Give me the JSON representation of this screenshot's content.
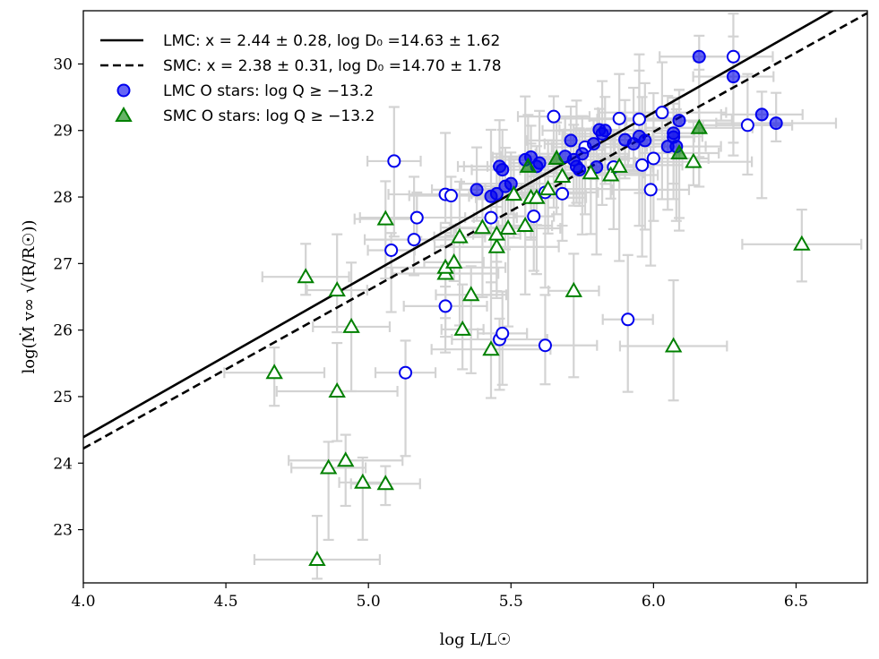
{
  "chart_data": {
    "type": "scatter",
    "xlabel": "log L/L☉",
    "ylabel": "log(Ṁ v∞ √(R/R☉))",
    "xlim": [
      4.0,
      6.75
    ],
    "ylim": [
      22.2,
      30.8
    ],
    "xticks": [
      4.0,
      4.5,
      5.0,
      5.5,
      6.0,
      6.5
    ],
    "yticks": [
      23,
      24,
      25,
      26,
      27,
      28,
      29,
      30
    ],
    "xtick_labels": [
      "4.0",
      "4.5",
      "5.0",
      "5.5",
      "6.0",
      "6.5"
    ],
    "ytick_labels": [
      "23",
      "24",
      "25",
      "26",
      "27",
      "28",
      "29",
      "30"
    ],
    "legend": {
      "position": "top-left",
      "entries": [
        "LMC: x = 2.44 ± 0.28, log D₀ =14.63 ± 1.62",
        "SMC: x = 2.38 ± 0.31, log D₀ =14.70 ± 1.78",
        "LMC O stars: log Q ≥ −13.2",
        "SMC O stars: log Q ≥ −13.2"
      ]
    },
    "fits": [
      {
        "name": "LMC",
        "x": 2.44,
        "x_err": 0.28,
        "logD0": 14.63,
        "logD0_err": 1.62,
        "style": "solid"
      },
      {
        "name": "SMC",
        "x": 2.38,
        "x_err": 0.31,
        "logD0": 14.7,
        "logD0_err": 1.78,
        "style": "dashed"
      }
    ],
    "series": [
      {
        "name": "LMC O stars",
        "color": "#0000ee",
        "marker": "circle",
        "filled": [
          [
            5.46,
            28.46
          ],
          [
            5.47,
            28.41
          ],
          [
            5.55,
            28.56
          ],
          [
            5.57,
            28.6
          ],
          [
            5.59,
            28.46
          ],
          [
            5.6,
            28.51
          ],
          [
            5.38,
            28.11
          ],
          [
            5.43,
            28.01
          ],
          [
            5.45,
            28.05
          ],
          [
            5.48,
            28.16
          ],
          [
            5.5,
            28.2
          ],
          [
            5.69,
            28.61
          ],
          [
            5.71,
            28.85
          ],
          [
            5.72,
            28.56
          ],
          [
            5.73,
            28.46
          ],
          [
            5.74,
            28.41
          ],
          [
            5.75,
            28.65
          ],
          [
            5.79,
            28.8
          ],
          [
            5.81,
            29.01
          ],
          [
            5.82,
            28.95
          ],
          [
            5.83,
            29.0
          ],
          [
            5.8,
            28.45
          ],
          [
            5.9,
            28.86
          ],
          [
            5.93,
            28.8
          ],
          [
            5.97,
            28.85
          ],
          [
            5.95,
            28.91
          ],
          [
            6.05,
            28.76
          ],
          [
            6.07,
            28.9
          ],
          [
            6.08,
            28.76
          ],
          [
            6.09,
            29.15
          ],
          [
            6.07,
            28.96
          ],
          [
            6.16,
            30.11
          ],
          [
            6.28,
            29.81
          ],
          [
            6.38,
            29.24
          ],
          [
            6.43,
            29.11
          ]
        ],
        "open": [
          [
            5.09,
            28.54
          ],
          [
            5.16,
            27.36
          ],
          [
            5.17,
            27.69
          ],
          [
            5.08,
            27.2
          ],
          [
            5.27,
            28.04
          ],
          [
            5.29,
            28.02
          ],
          [
            5.27,
            26.36
          ],
          [
            5.13,
            25.36
          ],
          [
            5.43,
            27.69
          ],
          [
            5.46,
            25.86
          ],
          [
            5.47,
            25.95
          ],
          [
            5.58,
            27.71
          ],
          [
            5.62,
            28.07
          ],
          [
            5.62,
            25.77
          ],
          [
            5.65,
            29.21
          ],
          [
            5.68,
            28.05
          ],
          [
            5.76,
            28.75
          ],
          [
            5.86,
            28.45
          ],
          [
            5.88,
            29.18
          ],
          [
            5.91,
            26.16
          ],
          [
            5.95,
            29.17
          ],
          [
            5.96,
            28.48
          ],
          [
            5.99,
            28.11
          ],
          [
            6.0,
            28.58
          ],
          [
            6.03,
            29.27
          ],
          [
            6.28,
            30.11
          ],
          [
            6.33,
            29.08
          ]
        ]
      },
      {
        "name": "SMC O stars",
        "color": "#008000",
        "marker": "triangle",
        "filled": [
          [
            6.16,
            29.04
          ],
          [
            6.09,
            28.66
          ],
          [
            5.66,
            28.58
          ],
          [
            5.56,
            28.46
          ]
        ],
        "open": [
          [
            4.67,
            25.36
          ],
          [
            4.78,
            26.8
          ],
          [
            4.82,
            22.55
          ],
          [
            4.86,
            23.93
          ],
          [
            4.89,
            26.6
          ],
          [
            4.89,
            25.08
          ],
          [
            4.92,
            24.04
          ],
          [
            4.94,
            26.05
          ],
          [
            4.98,
            23.71
          ],
          [
            5.06,
            27.67
          ],
          [
            5.06,
            23.69
          ],
          [
            5.27,
            26.85
          ],
          [
            5.27,
            26.94
          ],
          [
            5.3,
            27.02
          ],
          [
            5.32,
            27.4
          ],
          [
            5.33,
            26.01
          ],
          [
            5.36,
            26.53
          ],
          [
            5.4,
            27.54
          ],
          [
            5.43,
            25.71
          ],
          [
            5.45,
            27.25
          ],
          [
            5.45,
            27.44
          ],
          [
            5.49,
            27.53
          ],
          [
            5.51,
            28.04
          ],
          [
            5.55,
            27.57
          ],
          [
            5.57,
            27.99
          ],
          [
            5.59,
            27.99
          ],
          [
            5.63,
            28.12
          ],
          [
            5.68,
            28.31
          ],
          [
            5.72,
            26.59
          ],
          [
            5.78,
            28.36
          ],
          [
            5.85,
            28.33
          ],
          [
            5.88,
            28.46
          ],
          [
            6.07,
            25.76
          ],
          [
            6.14,
            28.53
          ],
          [
            6.52,
            27.29
          ]
        ]
      }
    ]
  }
}
